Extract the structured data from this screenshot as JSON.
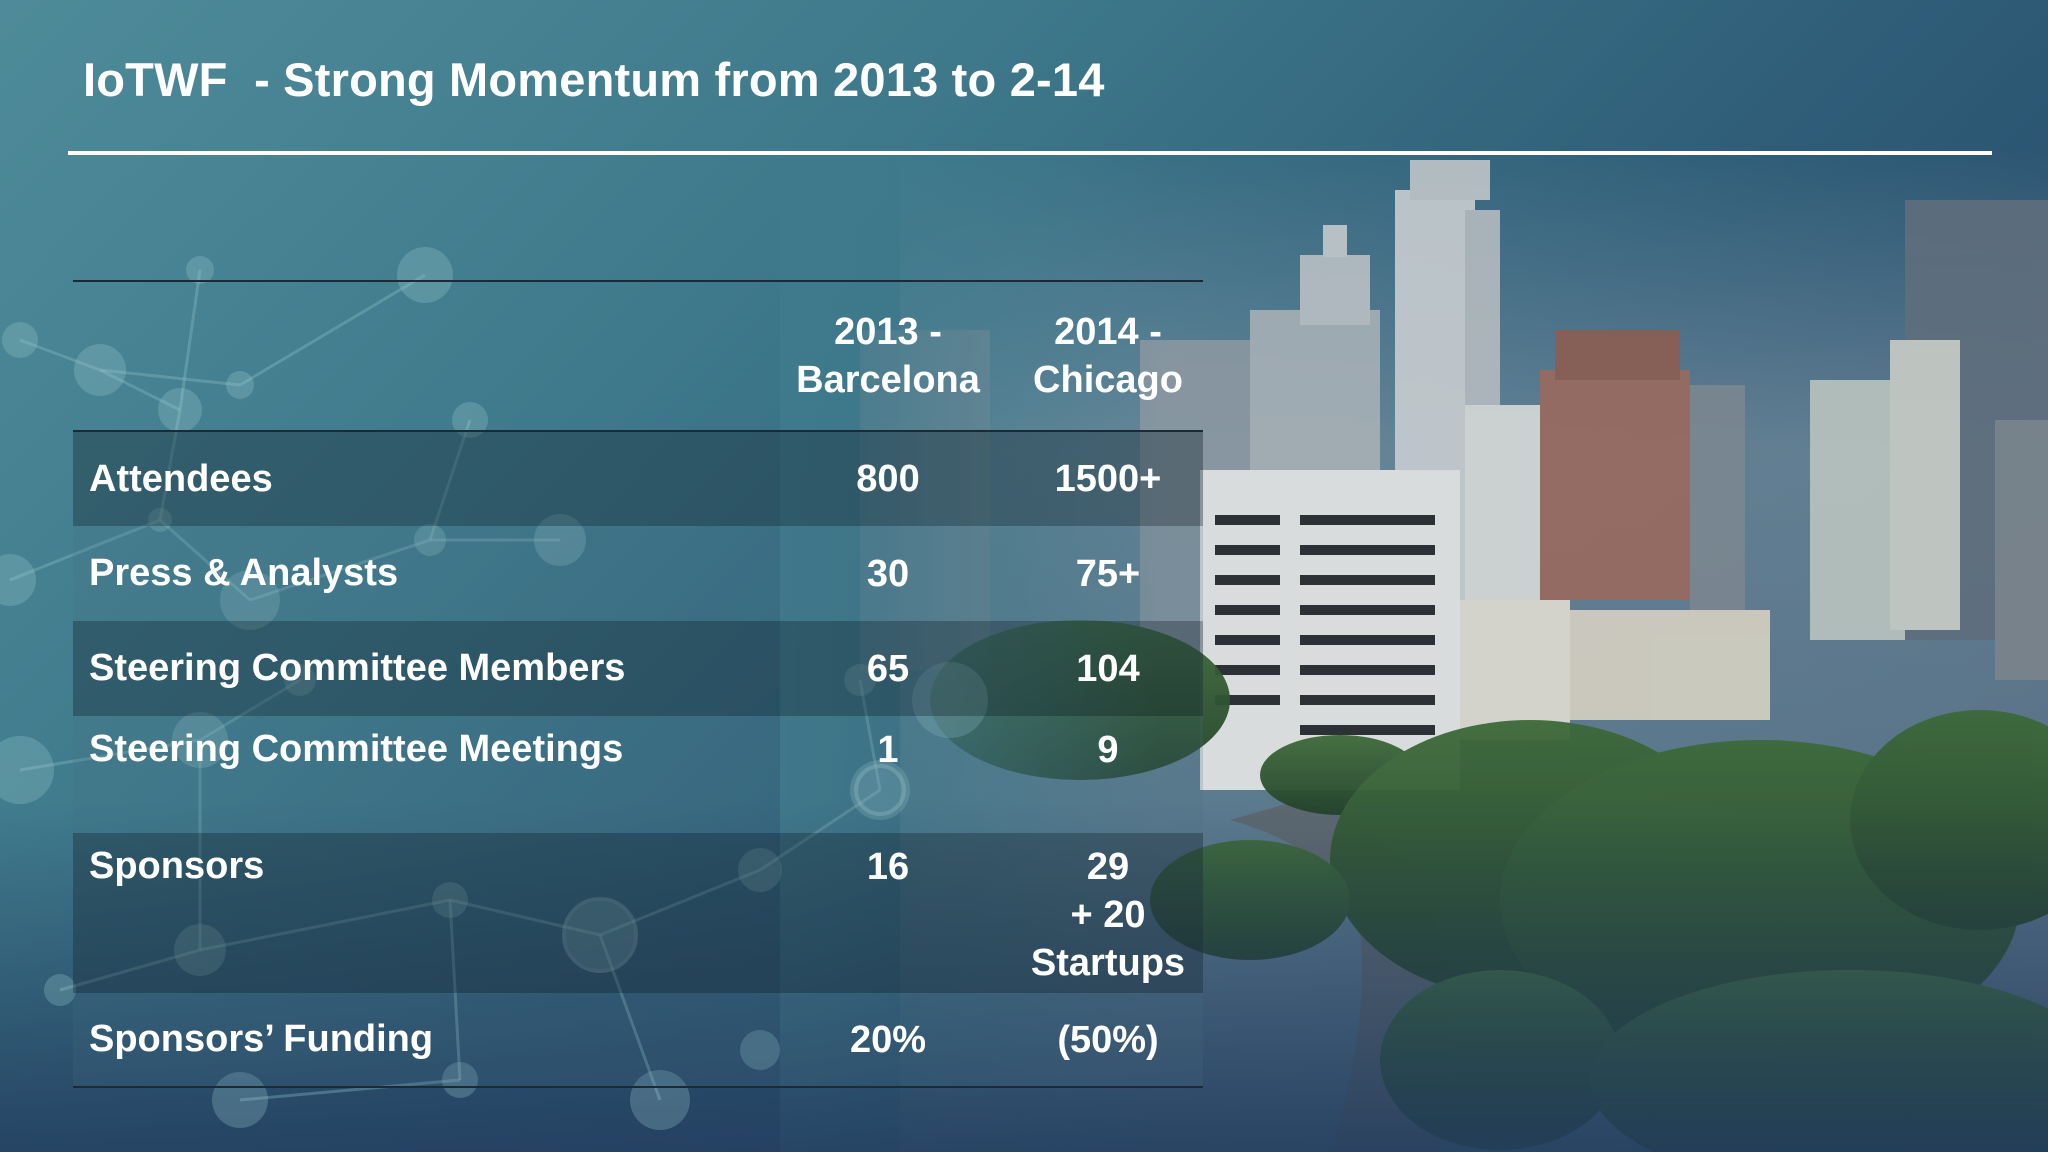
{
  "slide": {
    "title": "IoTWF  - Strong Momentum from 2013 to 2-14"
  },
  "table": {
    "headers": [
      "",
      "2013 -\nBarcelona",
      "2014 -\nChicago"
    ],
    "rows": [
      {
        "label": "Attendees",
        "v2013": "800",
        "v2014": "1500+"
      },
      {
        "label": "Press & Analysts",
        "v2013": "30",
        "v2014": "75+"
      },
      {
        "label": "Steering Committee Members",
        "v2013": "65",
        "v2014": "104"
      },
      {
        "label": "Steering Committee Meetings",
        "v2013": "1",
        "v2014": "9"
      },
      {
        "label": "Sponsors",
        "v2013": "16",
        "v2014": "29\n+ 20\nStartups"
      },
      {
        "label": "Sponsors’ Funding",
        "v2013": "20%",
        "v2014": "(50%)"
      }
    ]
  },
  "colors": {
    "text": "#ffffff",
    "rule": "#ffffff",
    "table_border": "#1b2a36",
    "bg_teal": "#4e8b99",
    "bg_navy": "#223c5e"
  }
}
